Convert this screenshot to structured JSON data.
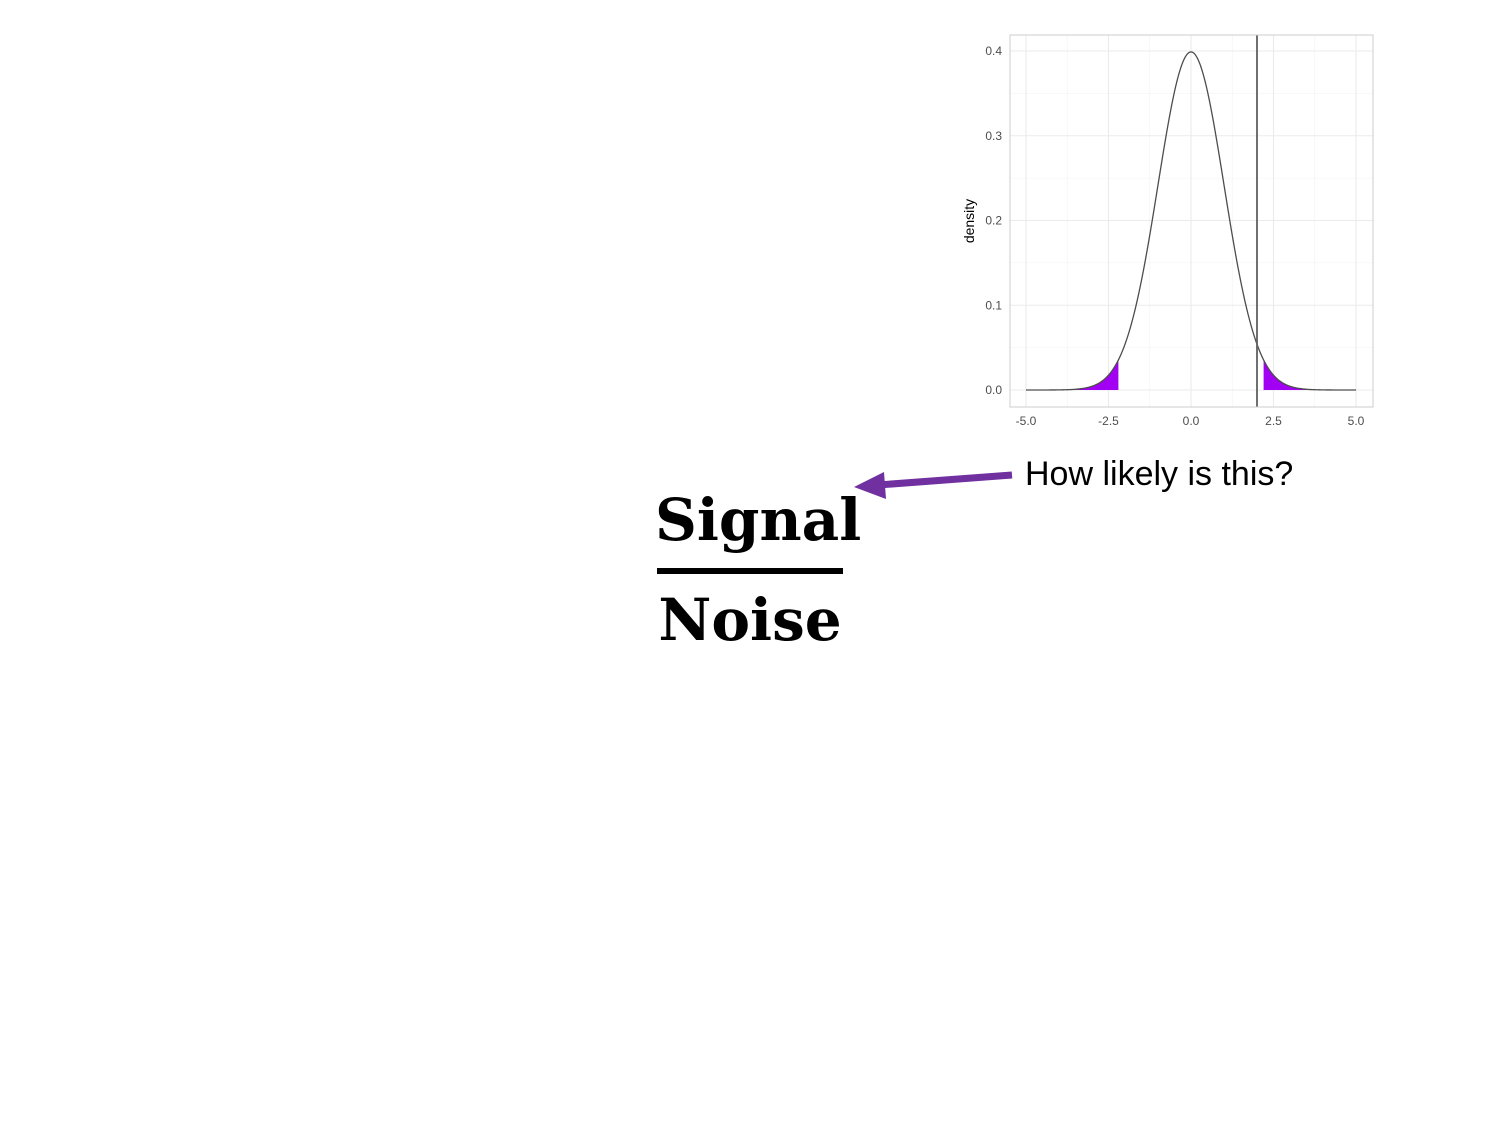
{
  "slide": {
    "callout": "How likely is this?",
    "numerator": "Signal",
    "denominator": "Noise"
  },
  "colors": {
    "tail_fill": "#a100f2",
    "arrow": "#7030a0",
    "curve": "#4d4d4d",
    "vline": "#606060",
    "grid": "#ebebeb"
  },
  "chart_data": {
    "type": "area",
    "title": "",
    "xlabel": "",
    "ylabel": "density",
    "xlim": [
      -5.0,
      5.0
    ],
    "ylim": [
      0.0,
      0.4
    ],
    "x_ticks": [
      "-5.0",
      "-2.5",
      "0.0",
      "2.5",
      "5.0"
    ],
    "y_ticks": [
      "0.0",
      "0.1",
      "0.2",
      "0.3",
      "0.4"
    ],
    "grid": true,
    "series": [
      {
        "distribution": "standard normal density",
        "x": [
          -5.0,
          -4.0,
          -3.0,
          -2.5,
          -2.0,
          -1.5,
          -1.0,
          -0.5,
          0.0,
          0.5,
          1.0,
          1.5,
          2.0,
          2.5,
          3.0,
          4.0,
          5.0
        ],
        "y": [
          0.0,
          0.0001,
          0.0044,
          0.0175,
          0.054,
          0.1295,
          0.242,
          0.3521,
          0.3989,
          0.3521,
          0.242,
          0.1295,
          0.054,
          0.0175,
          0.0044,
          0.0001,
          0.0
        ]
      }
    ],
    "shaded_tails": [
      [
        -5.0,
        -2.2
      ],
      [
        2.2,
        5.0
      ]
    ],
    "vertical_line_x": 2.0
  }
}
